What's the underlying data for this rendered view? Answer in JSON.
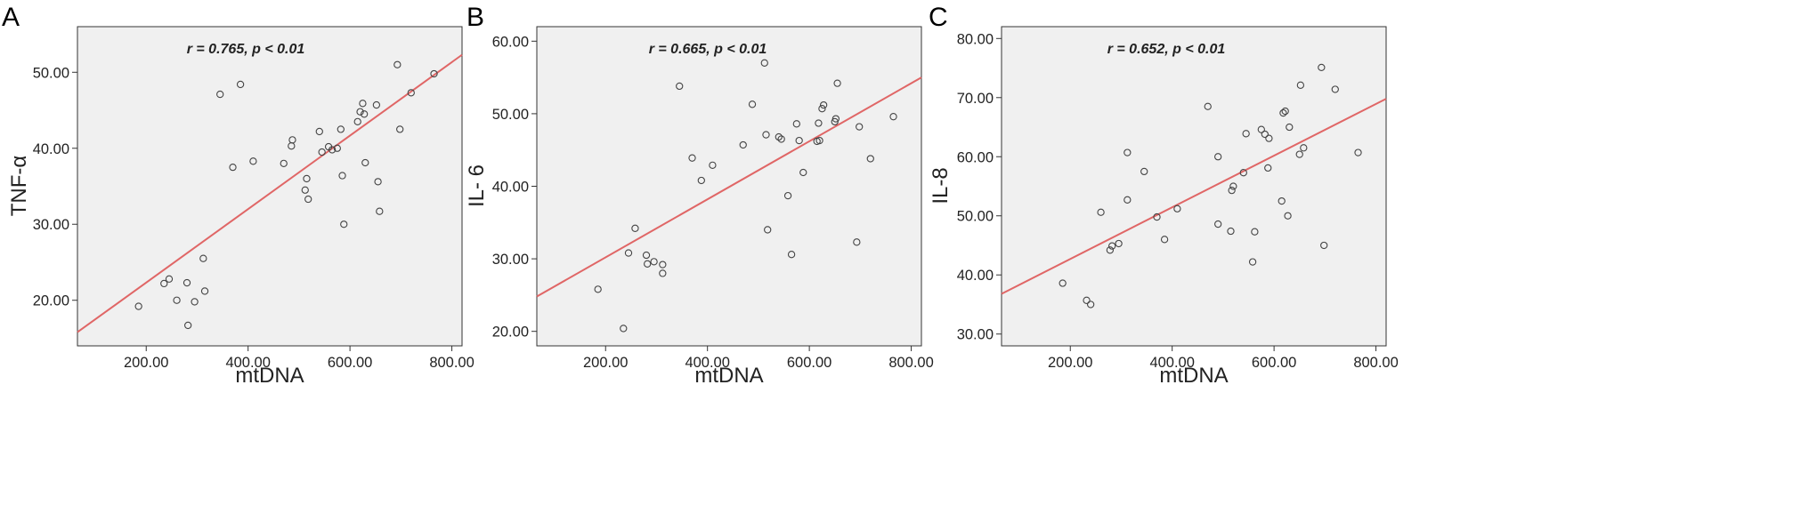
{
  "chart_data": [
    {
      "type": "scatter",
      "panel_label": "A",
      "xlabel": "mtDNA",
      "ylabel": "TNF-α",
      "annotation": "r = 0.765, p < 0.01",
      "xlim": [
        65,
        820
      ],
      "ylim": [
        14,
        56
      ],
      "x_ticks": [
        "200.00",
        "400.00",
        "600.00",
        "800.00"
      ],
      "y_ticks": [
        "20.00",
        "30.00",
        "40.00",
        "50.00"
      ],
      "fit_line": {
        "x": [
          65,
          820
        ],
        "y": [
          15.8,
          52.3
        ],
        "color": "#e06666"
      },
      "points": {
        "x": [
          185,
          235,
          245,
          260,
          280,
          282,
          295,
          312,
          315,
          345,
          370,
          385,
          410,
          470,
          485,
          487,
          512,
          515,
          518,
          540,
          545,
          558,
          565,
          575,
          582,
          585,
          588,
          615,
          620,
          625,
          628,
          630,
          652,
          655,
          658,
          693,
          698,
          720,
          765
        ],
        "y": [
          19.2,
          22.2,
          22.8,
          20.0,
          22.3,
          16.7,
          19.8,
          25.5,
          21.2,
          47.1,
          37.5,
          48.4,
          38.3,
          38.0,
          40.3,
          41.1,
          34.5,
          36.0,
          33.3,
          42.2,
          39.5,
          40.2,
          39.8,
          40.0,
          42.5,
          36.4,
          30.0,
          43.5,
          44.8,
          45.9,
          44.5,
          38.1,
          45.7,
          35.6,
          31.7,
          51.0,
          42.5,
          47.3,
          49.8
        ]
      },
      "grid": false
    },
    {
      "type": "scatter",
      "panel_label": "B",
      "xlabel": "mtDNA",
      "ylabel": "IL- 6",
      "annotation": "r = 0.665, p < 0.01",
      "xlim": [
        65,
        820
      ],
      "ylim": [
        18,
        62
      ],
      "x_ticks": [
        "200.00",
        "400.00",
        "600.00",
        "800.00"
      ],
      "y_ticks": [
        "20.00",
        "30.00",
        "40.00",
        "50.00",
        "60.00"
      ],
      "fit_line": {
        "x": [
          65,
          820
        ],
        "y": [
          24.8,
          55.0
        ],
        "color": "#e06666"
      },
      "points": {
        "x": [
          185,
          235,
          245,
          258,
          280,
          282,
          295,
          312,
          312,
          345,
          370,
          388,
          410,
          470,
          488,
          512,
          515,
          518,
          540,
          545,
          558,
          565,
          575,
          580,
          588,
          615,
          618,
          620,
          625,
          628,
          650,
          652,
          655,
          693,
          698,
          720,
          765
        ],
        "y": [
          25.8,
          20.4,
          30.8,
          34.2,
          30.5,
          29.3,
          29.6,
          29.2,
          28.0,
          53.8,
          43.9,
          40.8,
          42.9,
          45.7,
          51.3,
          57.0,
          47.1,
          34.0,
          46.8,
          46.5,
          38.7,
          30.6,
          48.6,
          46.3,
          41.9,
          46.2,
          48.7,
          46.3,
          50.7,
          51.2,
          48.9,
          49.3,
          54.2,
          32.3,
          48.2,
          43.8,
          49.6
        ]
      },
      "grid": false
    },
    {
      "type": "scatter",
      "panel_label": "C",
      "xlabel": "mtDNA",
      "ylabel": "IL-8",
      "annotation": "r = 0.652, p < 0.01",
      "xlim": [
        65,
        820
      ],
      "ylim": [
        28,
        82
      ],
      "x_ticks": [
        "200.00",
        "400.00",
        "600.00",
        "800.00"
      ],
      "y_ticks": [
        "30.00",
        "40.00",
        "50.00",
        "60.00",
        "70.00",
        "80.00"
      ],
      "fit_line": {
        "x": [
          65,
          820
        ],
        "y": [
          36.8,
          69.8
        ],
        "color": "#e06666"
      },
      "points": {
        "x": [
          185,
          232,
          240,
          260,
          278,
          282,
          295,
          312,
          312,
          345,
          370,
          385,
          410,
          470,
          490,
          490,
          515,
          517,
          520,
          540,
          545,
          558,
          562,
          575,
          582,
          588,
          590,
          615,
          618,
          622,
          627,
          630,
          650,
          652,
          658,
          693,
          698,
          720,
          765
        ],
        "y": [
          38.6,
          35.7,
          35.0,
          50.6,
          44.2,
          44.9,
          45.3,
          52.7,
          60.7,
          57.5,
          49.8,
          46.0,
          51.2,
          68.5,
          48.6,
          60.0,
          47.4,
          54.3,
          55.0,
          57.3,
          63.9,
          42.2,
          47.3,
          64.6,
          63.8,
          58.1,
          63.1,
          52.5,
          67.4,
          67.7,
          50.0,
          65.0,
          60.4,
          72.1,
          61.5,
          75.1,
          45.0,
          71.4,
          60.7
        ]
      },
      "grid": false
    }
  ]
}
